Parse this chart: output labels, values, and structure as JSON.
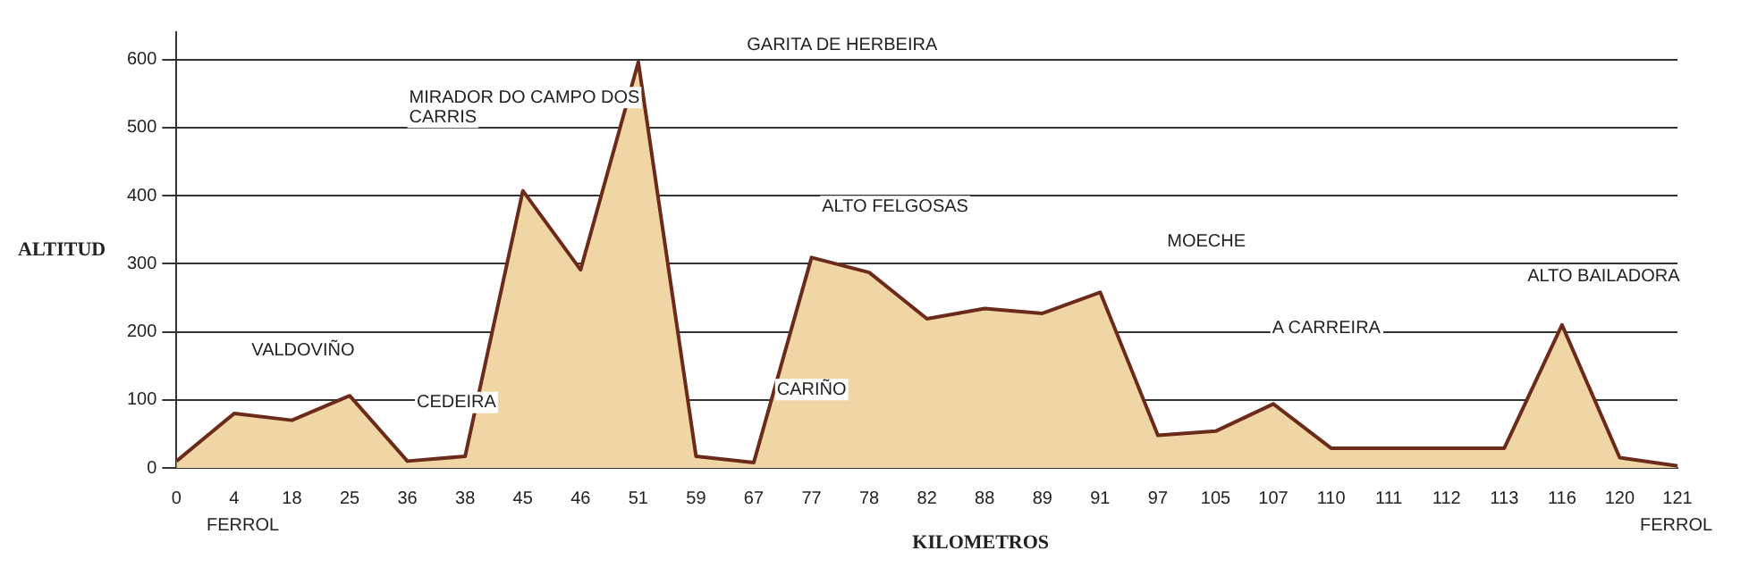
{
  "chart_data": {
    "type": "area",
    "xlabel": "KILOMETROS",
    "ylabel": "ALTITUD",
    "categories": [
      "0",
      "4",
      "18",
      "25",
      "36",
      "38",
      "45",
      "46",
      "51",
      "59",
      "67",
      "77",
      "78",
      "82",
      "88",
      "89",
      "91",
      "97",
      "105",
      "107",
      "110",
      "111",
      "112",
      "113",
      "116",
      "120",
      "121"
    ],
    "series": [
      {
        "color": "#f0d6a4",
        "values": [
          10,
          80,
          70,
          106,
          10,
          17,
          407,
          291,
          596,
          17,
          8,
          309,
          287,
          219,
          234,
          227,
          258,
          48,
          54,
          94,
          29,
          29,
          29,
          29,
          210,
          15,
          3
        ]
      }
    ],
    "ylim": [
      0,
      640
    ],
    "yticks": [
      0,
      100,
      200,
      300,
      400,
      500,
      600
    ],
    "grid": "y",
    "legend": false,
    "annotations": [
      "FERROL",
      "VALDOVIÑO",
      "CEDEIRA",
      "MIRADOR DO CAMPO DOS CARRIS",
      "GARITA DE HERBEIRA",
      "CARIÑO",
      "ALTO FELGOSAS",
      "MOECHE",
      "A CARREIRA",
      "ALTO BAILADORA",
      "FERROL"
    ]
  }
}
